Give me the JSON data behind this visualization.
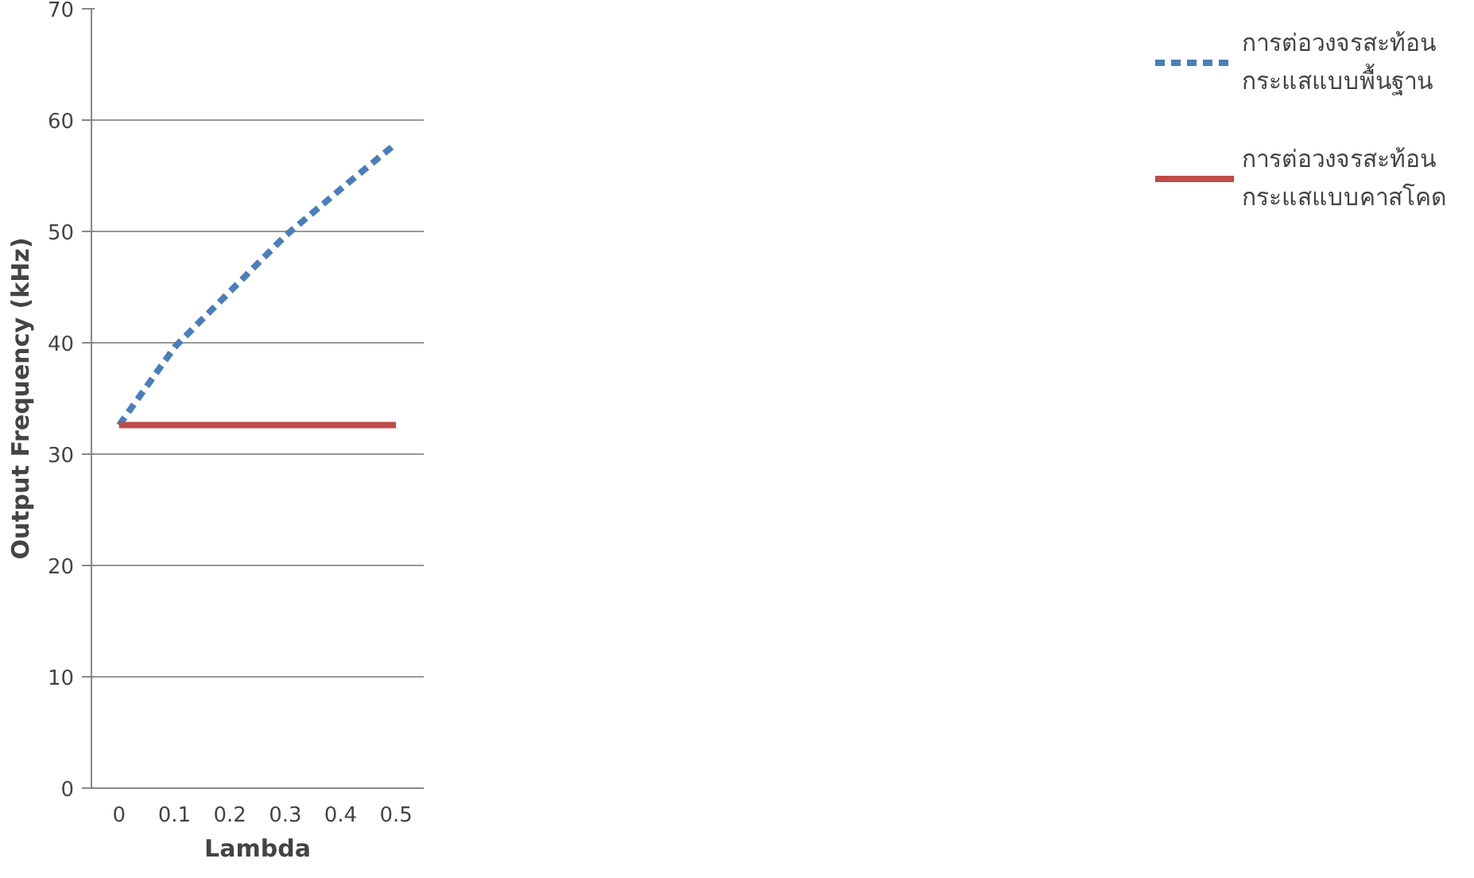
{
  "chart_data": {
    "type": "line",
    "xlabel": "Lambda",
    "ylabel": "Output Frequency (kHz)",
    "categories": [
      "0",
      "0.1",
      "0.2",
      "0.3",
      "0.4",
      "0.5"
    ],
    "series": [
      {
        "name": "การต่อวงจรสะท้อน\nกระแสแบบพื้นฐาน",
        "color": "#4a7ebb",
        "line_style": "dashed",
        "values": [
          32.6,
          39.6,
          44.6,
          49.6,
          53.8,
          57.9
        ]
      },
      {
        "name": "การต่อวงจรสะท้อน\nกระแสแบบคาสโคด",
        "color": "#be4b48",
        "line_style": "solid",
        "values": [
          32.6,
          32.6,
          32.6,
          32.6,
          32.6,
          32.6
        ]
      }
    ],
    "ylim": [
      0,
      70
    ],
    "yticks": [
      0,
      10,
      20,
      30,
      40,
      50,
      60,
      70
    ],
    "grid": "y",
    "legend": "right"
  }
}
